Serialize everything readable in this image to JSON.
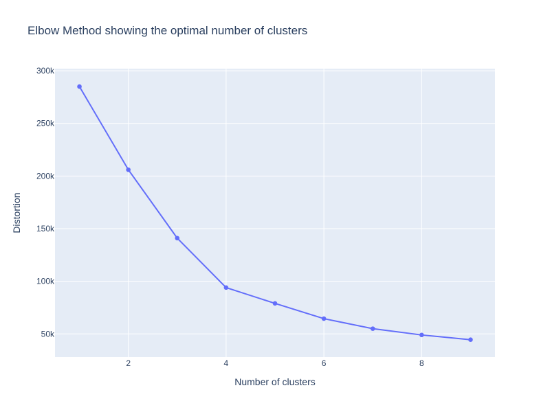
{
  "chart_data": {
    "type": "line",
    "title": "Elbow Method showing the optimal number of clusters",
    "xlabel": "Number of clusters",
    "ylabel": "Distortion",
    "x": [
      1,
      2,
      3,
      4,
      5,
      6,
      7,
      8,
      9
    ],
    "series": [
      {
        "values": [
          285000,
          206000,
          141000,
          94000,
          79000,
          64500,
          55000,
          49000,
          44500
        ]
      }
    ],
    "xlim": [
      0.5,
      9.5
    ],
    "ylim": [
      28000,
      302000
    ],
    "x_ticks": [
      2,
      4,
      6,
      8
    ],
    "x_tick_labels": [
      "2",
      "4",
      "6",
      "8"
    ],
    "y_ticks": [
      50000,
      100000,
      150000,
      200000,
      250000,
      300000
    ],
    "y_tick_labels": [
      "50k",
      "100k",
      "150k",
      "200k",
      "250k",
      "300k"
    ],
    "grid": true,
    "colors": {
      "line": "#636efa",
      "plot_background": "#e5ecf6",
      "grid": "#ffffff",
      "text": "#2a3f5f"
    }
  }
}
